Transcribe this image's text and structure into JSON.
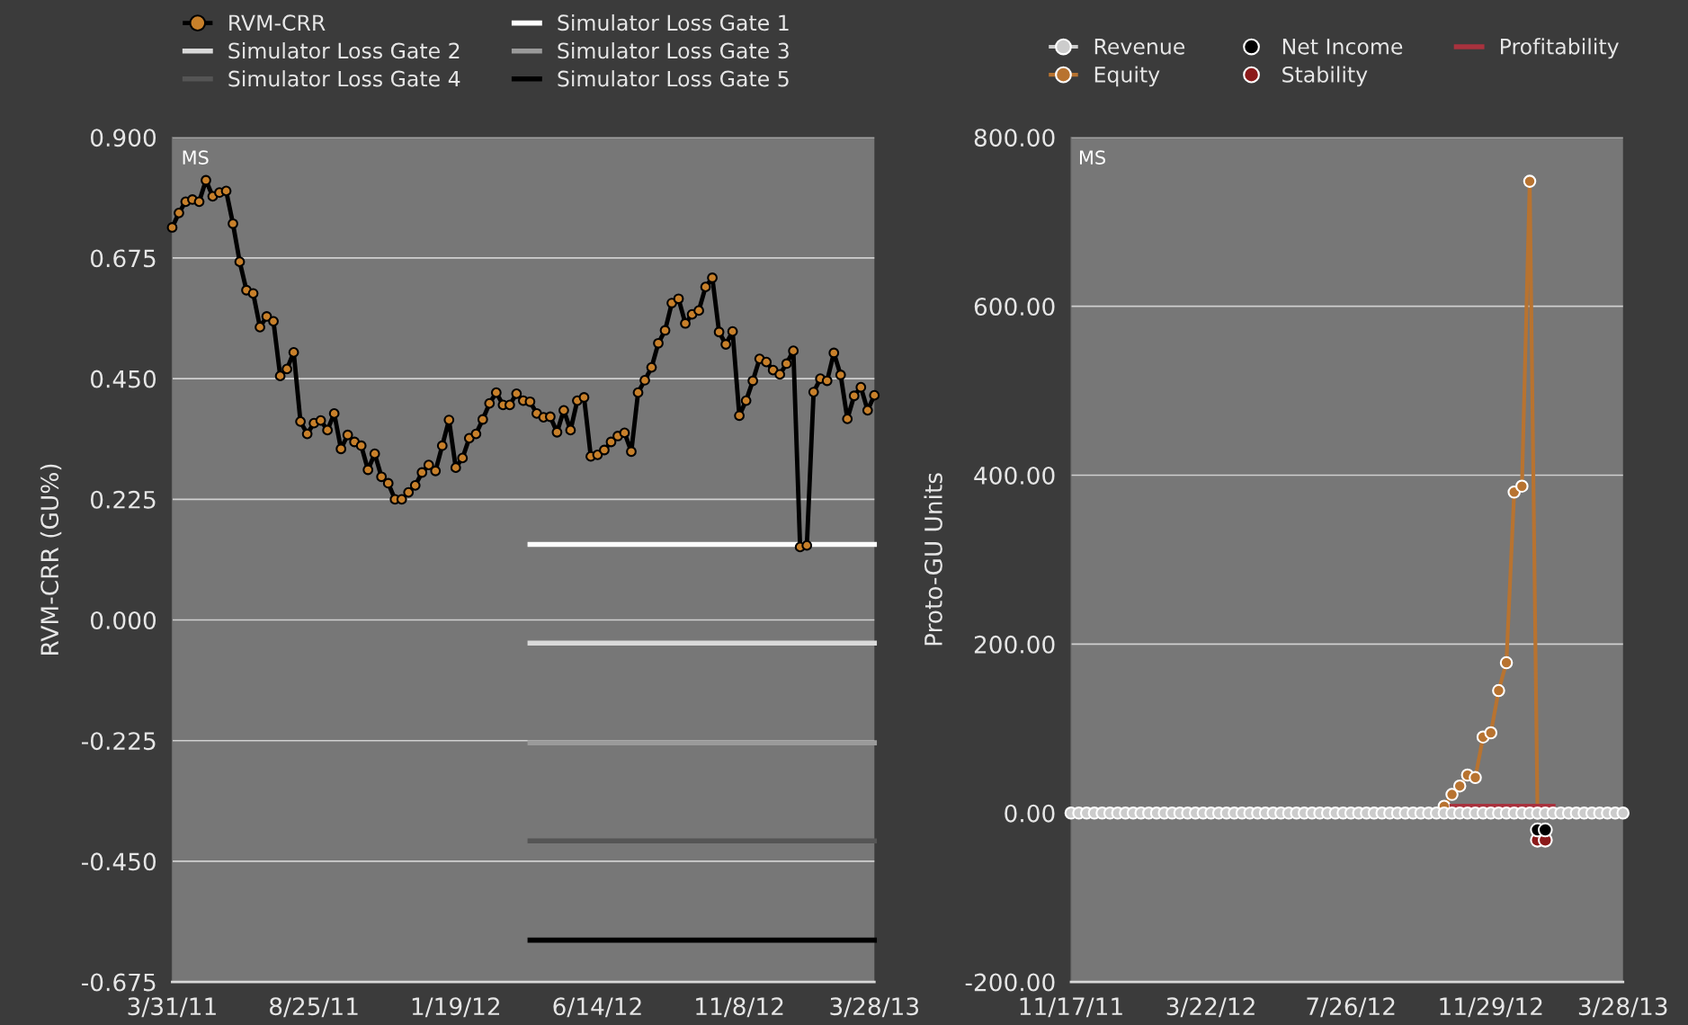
{
  "chart_data": [
    {
      "type": "line",
      "ylabel": "RVM-CRR (GU%)",
      "annotations": [
        "MS"
      ],
      "grid": "y",
      "legend": "top",
      "marker": "circle",
      "xlim": [
        "2011-03-31",
        "2013-03-28"
      ],
      "xticks": [
        {
          "value": "2011-03-31",
          "label": "3/31/11"
        },
        {
          "value": "2011-08-25",
          "label": "8/25/11"
        },
        {
          "value": "2012-01-19",
          "label": "1/19/12"
        },
        {
          "value": "2012-06-14",
          "label": "6/14/12"
        },
        {
          "value": "2012-11-08",
          "label": "11/8/12"
        },
        {
          "value": "2013-03-28",
          "label": "3/28/13"
        }
      ],
      "ylim": [
        -0.675,
        0.9
      ],
      "yticks": [
        {
          "value": 0.9,
          "label": "0.900"
        },
        {
          "value": 0.675,
          "label": "0.675"
        },
        {
          "value": 0.45,
          "label": "0.450"
        },
        {
          "value": 0.225,
          "label": "0.225"
        },
        {
          "value": 0,
          "label": "0.000"
        },
        {
          "value": -0.225,
          "label": "-0.225"
        },
        {
          "value": -0.45,
          "label": "-0.450"
        },
        {
          "value": -0.675,
          "label": "-0.675"
        }
      ],
      "x": [
        "2011-03-31",
        "2011-04-07",
        "2011-04-14",
        "2011-04-21",
        "2011-04-28",
        "2011-05-05",
        "2011-05-12",
        "2011-05-19",
        "2011-05-26",
        "2011-06-02",
        "2011-06-09",
        "2011-06-16",
        "2011-06-23",
        "2011-06-30",
        "2011-07-07",
        "2011-07-14",
        "2011-07-21",
        "2011-07-28",
        "2011-08-04",
        "2011-08-11",
        "2011-08-18",
        "2011-08-25",
        "2011-09-01",
        "2011-09-08",
        "2011-09-15",
        "2011-09-22",
        "2011-09-29",
        "2011-10-06",
        "2011-10-13",
        "2011-10-20",
        "2011-10-27",
        "2011-11-03",
        "2011-11-10",
        "2011-11-17",
        "2011-11-24",
        "2011-12-01",
        "2011-12-08",
        "2011-12-15",
        "2011-12-22",
        "2011-12-29",
        "2012-01-05",
        "2012-01-12",
        "2012-01-19",
        "2012-01-26",
        "2012-02-02",
        "2012-02-09",
        "2012-02-16",
        "2012-02-23",
        "2012-03-01",
        "2012-03-08",
        "2012-03-15",
        "2012-03-22",
        "2012-03-29",
        "2012-04-05",
        "2012-04-12",
        "2012-04-19",
        "2012-04-26",
        "2012-05-03",
        "2012-05-10",
        "2012-05-17",
        "2012-05-24",
        "2012-05-31",
        "2012-06-07",
        "2012-06-14",
        "2012-06-21",
        "2012-06-28",
        "2012-07-05",
        "2012-07-12",
        "2012-07-19",
        "2012-07-26",
        "2012-08-02",
        "2012-08-09",
        "2012-08-16",
        "2012-08-23",
        "2012-08-30",
        "2012-09-06",
        "2012-09-13",
        "2012-09-20",
        "2012-09-27",
        "2012-10-04",
        "2012-10-11",
        "2012-10-18",
        "2012-10-25",
        "2012-11-01",
        "2012-11-08",
        "2012-11-15",
        "2012-11-22",
        "2012-11-29",
        "2012-12-06",
        "2012-12-13",
        "2012-12-20",
        "2012-12-27",
        "2013-01-03",
        "2013-01-10",
        "2013-01-17",
        "2013-01-24",
        "2013-01-31",
        "2013-02-07",
        "2013-02-14",
        "2013-02-21",
        "2013-02-28",
        "2013-03-07",
        "2013-03-14",
        "2013-03-21",
        "2013-03-28"
      ],
      "series": [
        {
          "name": "RVM-CRR",
          "color": "#c8802a",
          "values": [
            0.732,
            0.759,
            0.78,
            0.784,
            0.78,
            0.82,
            0.79,
            0.797,
            0.8,
            0.739,
            0.668,
            0.615,
            0.609,
            0.546,
            0.566,
            0.557,
            0.455,
            0.468,
            0.499,
            0.37,
            0.347,
            0.367,
            0.372,
            0.354,
            0.385,
            0.319,
            0.345,
            0.332,
            0.325,
            0.28,
            0.31,
            0.267,
            0.255,
            0.225,
            0.225,
            0.238,
            0.251,
            0.275,
            0.289,
            0.278,
            0.325,
            0.373,
            0.284,
            0.302,
            0.339,
            0.347,
            0.374,
            0.404,
            0.424,
            0.401,
            0.401,
            0.422,
            0.409,
            0.407,
            0.385,
            0.378,
            0.379,
            0.35,
            0.391,
            0.354,
            0.409,
            0.415,
            0.305,
            0.308,
            0.317,
            0.332,
            0.343,
            0.349,
            0.314,
            0.424,
            0.447,
            0.471,
            0.516,
            0.54,
            0.591,
            0.599,
            0.553,
            0.57,
            0.577,
            0.621,
            0.638,
            0.537,
            0.514,
            0.538,
            0.381,
            0.409,
            0.446,
            0.487,
            0.481,
            0.466,
            0.458,
            0.478,
            0.502,
            0.136,
            0.139,
            0.425,
            0.45,
            0.446,
            0.498,
            0.457,
            0.375,
            0.418,
            0.434,
            0.391,
            0.419
          ]
        },
        {
          "name": "Simulator Loss Gate 1",
          "color": "#ffffff",
          "marker": "none",
          "x": [
            "2012-04-05",
            "2013-03-28"
          ],
          "values": [
            0.141,
            0.141
          ]
        },
        {
          "name": "Simulator Loss Gate 2",
          "color": "#d9d9d9",
          "marker": "none",
          "x": [
            "2012-04-05",
            "2013-03-28"
          ],
          "values": [
            -0.043,
            -0.043
          ]
        },
        {
          "name": "Simulator Loss Gate 3",
          "color": "#9a9a9a",
          "marker": "none",
          "x": [
            "2012-04-05",
            "2013-03-28"
          ],
          "values": [
            -0.229,
            -0.229
          ]
        },
        {
          "name": "Simulator Loss Gate 4",
          "color": "#555555",
          "marker": "none",
          "x": [
            "2012-04-05",
            "2013-03-28"
          ],
          "values": [
            -0.412,
            -0.412
          ]
        },
        {
          "name": "Simulator Loss Gate 5",
          "color": "#000000",
          "marker": "none",
          "x": [
            "2012-04-05",
            "2013-03-28"
          ],
          "values": [
            -0.597,
            -0.597
          ]
        }
      ]
    },
    {
      "type": "line",
      "ylabel": "Proto-GU Units",
      "annotations": [
        "MS"
      ],
      "grid": "y",
      "legend": "top",
      "marker": "circle",
      "xlim": [
        "2011-11-17",
        "2013-03-28"
      ],
      "xticks": [
        {
          "value": "2011-11-17",
          "label": "11/17/11"
        },
        {
          "value": "2012-03-22",
          "label": "3/22/12"
        },
        {
          "value": "2012-07-26",
          "label": "7/26/12"
        },
        {
          "value": "2012-11-29",
          "label": "11/29/12"
        },
        {
          "value": "2013-03-28",
          "label": "3/28/13"
        }
      ],
      "ylim": [
        -200,
        800
      ],
      "yticks": [
        {
          "value": 800,
          "label": "800.00"
        },
        {
          "value": 600,
          "label": "600.00"
        },
        {
          "value": 400,
          "label": "400.00"
        },
        {
          "value": 200,
          "label": "200.00"
        },
        {
          "value": 0,
          "label": "0.00"
        },
        {
          "value": -200,
          "label": "-200.00"
        }
      ],
      "x": [
        "2011-11-17",
        "2011-11-24",
        "2011-12-01",
        "2011-12-08",
        "2011-12-15",
        "2011-12-22",
        "2011-12-29",
        "2012-01-05",
        "2012-01-12",
        "2012-01-19",
        "2012-01-26",
        "2012-02-02",
        "2012-02-09",
        "2012-02-16",
        "2012-02-23",
        "2012-03-01",
        "2012-03-08",
        "2012-03-15",
        "2012-03-22",
        "2012-03-29",
        "2012-04-05",
        "2012-04-12",
        "2012-04-19",
        "2012-04-26",
        "2012-05-03",
        "2012-05-10",
        "2012-05-17",
        "2012-05-24",
        "2012-05-31",
        "2012-06-07",
        "2012-06-14",
        "2012-06-21",
        "2012-06-28",
        "2012-07-05",
        "2012-07-12",
        "2012-07-19",
        "2012-07-26",
        "2012-08-02",
        "2012-08-09",
        "2012-08-16",
        "2012-08-23",
        "2012-08-30",
        "2012-09-06",
        "2012-09-13",
        "2012-09-20",
        "2012-09-27",
        "2012-10-04",
        "2012-10-11",
        "2012-10-18",
        "2012-10-25",
        "2012-11-01",
        "2012-11-08",
        "2012-11-15",
        "2012-11-22",
        "2012-11-29",
        "2012-12-06",
        "2012-12-13",
        "2012-12-20",
        "2012-12-27",
        "2013-01-03",
        "2013-01-10",
        "2013-01-17",
        "2013-01-24",
        "2013-01-31",
        "2013-02-07",
        "2013-02-14",
        "2013-02-21",
        "2013-02-28",
        "2013-03-07",
        "2013-03-14",
        "2013-03-21",
        "2013-03-28"
      ],
      "series": [
        {
          "name": "Revenue",
          "color": "#cccccc",
          "values": [
            0,
            0,
            0,
            0,
            0,
            0,
            0,
            0,
            0,
            0,
            0,
            0,
            0,
            0,
            0,
            0,
            0,
            0,
            0,
            0,
            0,
            0,
            0,
            0,
            0,
            0,
            0,
            0,
            0,
            0,
            0,
            0,
            0,
            0,
            0,
            0,
            0,
            0,
            0,
            0,
            0,
            0,
            0,
            0,
            0,
            0,
            0,
            0,
            0,
            0,
            0,
            0,
            0,
            0,
            0,
            0,
            0,
            0,
            0,
            0,
            0,
            0,
            0,
            0,
            0,
            0,
            0,
            0,
            0,
            0,
            0,
            0
          ]
        },
        {
          "name": "Net Income",
          "type": "scatter",
          "color": "#000000",
          "values": [
            null,
            null,
            null,
            null,
            null,
            null,
            null,
            null,
            null,
            null,
            null,
            null,
            null,
            null,
            null,
            null,
            null,
            null,
            null,
            null,
            null,
            null,
            null,
            null,
            null,
            null,
            null,
            null,
            null,
            null,
            null,
            null,
            null,
            null,
            null,
            null,
            null,
            null,
            null,
            null,
            null,
            null,
            null,
            null,
            null,
            null,
            null,
            null,
            null,
            null,
            null,
            null,
            null,
            null,
            null,
            null,
            null,
            null,
            null,
            null,
            -20,
            -20,
            null,
            null,
            null,
            null,
            null,
            null,
            null,
            null,
            null,
            null
          ]
        },
        {
          "name": "Profitability",
          "color": "#a8323e",
          "marker": "none",
          "values": [
            null,
            null,
            null,
            null,
            null,
            null,
            null,
            null,
            null,
            null,
            null,
            null,
            null,
            null,
            null,
            null,
            null,
            null,
            null,
            null,
            null,
            null,
            null,
            null,
            null,
            null,
            null,
            null,
            null,
            null,
            null,
            null,
            null,
            null,
            null,
            null,
            null,
            null,
            null,
            null,
            null,
            null,
            null,
            null,
            null,
            null,
            null,
            null,
            null,
            8,
            8,
            8,
            8,
            8,
            8,
            8,
            8,
            8,
            8,
            8,
            8,
            8,
            8,
            null,
            null,
            null,
            null,
            null,
            null,
            null,
            null,
            null
          ]
        },
        {
          "name": "Equity",
          "color": "#b87330",
          "values": [
            null,
            null,
            null,
            null,
            null,
            null,
            null,
            null,
            null,
            null,
            null,
            null,
            null,
            null,
            null,
            null,
            null,
            null,
            null,
            null,
            null,
            null,
            null,
            null,
            null,
            null,
            null,
            null,
            null,
            null,
            null,
            null,
            null,
            null,
            null,
            null,
            null,
            null,
            null,
            null,
            null,
            null,
            null,
            null,
            null,
            null,
            null,
            null,
            8,
            22,
            32,
            45,
            42,
            90,
            95,
            145,
            178,
            380,
            387,
            748,
            0,
            null,
            null,
            null,
            null,
            null,
            null,
            null,
            null,
            null,
            null,
            null
          ]
        },
        {
          "name": "Stability",
          "type": "scatter",
          "color": "#8b1a1a",
          "values": [
            null,
            null,
            null,
            null,
            null,
            null,
            null,
            null,
            null,
            null,
            null,
            null,
            null,
            null,
            null,
            null,
            null,
            null,
            null,
            null,
            null,
            null,
            null,
            null,
            null,
            null,
            null,
            null,
            null,
            null,
            null,
            null,
            null,
            null,
            null,
            null,
            null,
            null,
            null,
            null,
            null,
            null,
            null,
            null,
            null,
            null,
            null,
            null,
            null,
            null,
            null,
            null,
            null,
            null,
            null,
            null,
            null,
            null,
            null,
            null,
            -32,
            -32,
            null,
            null,
            null,
            null,
            null,
            null,
            null,
            null,
            null,
            null
          ]
        }
      ]
    }
  ]
}
